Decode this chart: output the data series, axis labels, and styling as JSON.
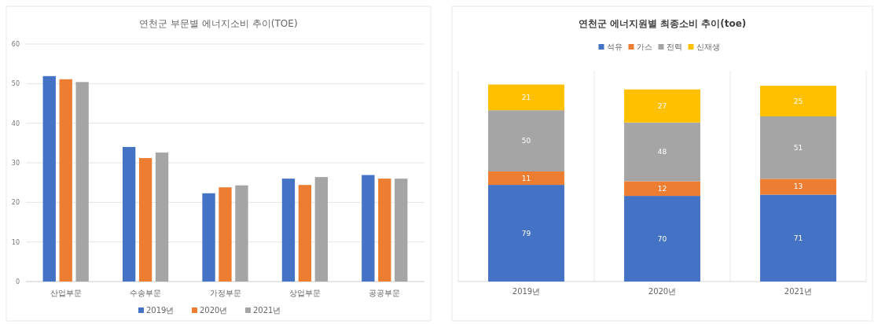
{
  "chart_data": [
    {
      "type": "bar",
      "title": "연천군 부문별 에너지소비 추이(TOE)",
      "categories": [
        "산업부문",
        "수송부문",
        "가정부문",
        "상업부문",
        "공공부문"
      ],
      "ylim": [
        0,
        60
      ],
      "yticks": [
        0,
        10,
        20,
        30,
        40,
        50,
        60
      ],
      "grid": "y",
      "legend": "bottom",
      "series": [
        {
          "name": "2019년",
          "color": "#4472c4",
          "values": [
            51.9,
            34.0,
            22.3,
            26.0,
            26.9
          ]
        },
        {
          "name": "2020년",
          "color": "#ed7d31",
          "values": [
            51.1,
            31.2,
            23.8,
            24.4,
            26.0
          ]
        },
        {
          "name": "2021년",
          "color": "#a5a5a5",
          "values": [
            50.4,
            32.6,
            24.3,
            26.4,
            26.0
          ]
        }
      ]
    },
    {
      "type": "bar",
      "title": "연천군 에너지원별 최종소비 추이(toe)",
      "categories": [
        "2019년",
        "2020년",
        "2021년"
      ],
      "stacked": true,
      "data_labels": true,
      "grid": "x",
      "legend": "top",
      "series": [
        {
          "name": "석유",
          "color": "#4472c4",
          "values": [
            79,
            70,
            71
          ]
        },
        {
          "name": "가스",
          "color": "#ed7d31",
          "values": [
            11,
            12,
            13
          ]
        },
        {
          "name": "전력",
          "color": "#a5a5a5",
          "values": [
            50,
            48,
            51
          ]
        },
        {
          "name": "신재생",
          "color": "#ffc000",
          "values": [
            21,
            27,
            25
          ]
        }
      ]
    }
  ]
}
